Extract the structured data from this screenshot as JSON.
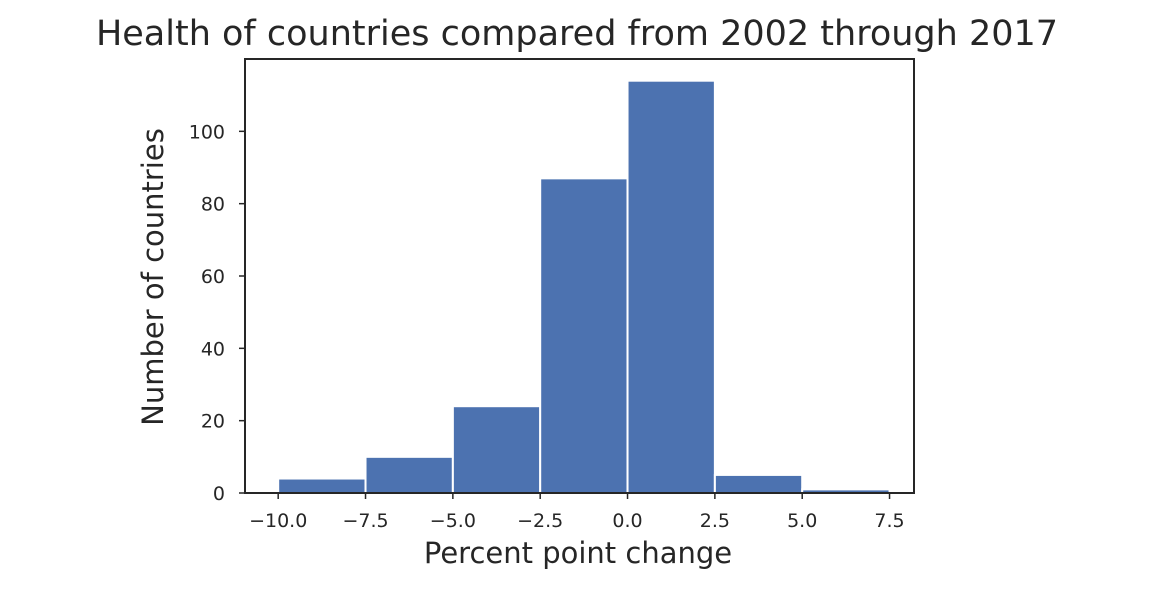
{
  "chart_data": {
    "type": "bar",
    "title": "Health of countries compared from 2002 through 2017",
    "xlabel": "Percent point change",
    "ylabel": "Number of countries",
    "bin_edges": [
      -10,
      -7.5,
      -5,
      -2.5,
      0,
      2.5,
      5,
      7.5
    ],
    "values": [
      4,
      10,
      24,
      87,
      114,
      5,
      1
    ],
    "xlim": [
      -10.95,
      8.2
    ],
    "ylim": [
      0,
      120
    ],
    "x_ticks": [
      -10,
      -7.5,
      -5,
      -2.5,
      0,
      2.5,
      5,
      7.5
    ],
    "x_tick_labels": [
      "−10.0",
      "−7.5",
      "−5.0",
      "−2.5",
      "0.0",
      "2.5",
      "5.0",
      "7.5"
    ],
    "y_ticks": [
      0,
      20,
      40,
      60,
      80,
      100
    ],
    "y_tick_labels": [
      "0",
      "20",
      "40",
      "60",
      "80",
      "100"
    ],
    "grid": false,
    "bar_color": "#4c72b0",
    "frame_color": "#262626",
    "text_color": "#262626"
  }
}
